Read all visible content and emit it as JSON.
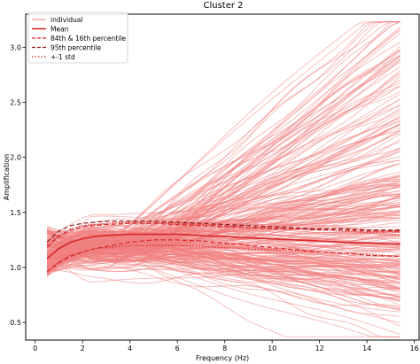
{
  "chart_data": {
    "type": "line",
    "title": "Cluster 2",
    "xlabel": "Frequency (Hz)",
    "ylabel": "Amplification",
    "xlim": [
      -0.4,
      16.2
    ],
    "ylim": [
      0.34,
      3.3
    ],
    "xticks": [
      0,
      2,
      4,
      6,
      8,
      10,
      12,
      14,
      16
    ],
    "xtick_labels": [
      "0",
      "2",
      "4",
      "6",
      "8",
      "10",
      "12",
      "14",
      "16"
    ],
    "yticks": [
      0.5,
      1.0,
      1.5,
      2.0,
      2.5,
      3.0
    ],
    "ytick_labels": [
      "0.5",
      "1.0",
      "1.5",
      "2.0",
      "2.5",
      "3.0"
    ],
    "grid": false,
    "legend_position": "top-left",
    "colors": {
      "individual": "#f08080",
      "stats": "#d62728",
      "axes": "#000000"
    },
    "legend": [
      {
        "label": "individual",
        "style": "solid-thin"
      },
      {
        "label": "Mean",
        "style": "solid"
      },
      {
        "label": "84th & 16th percentile",
        "style": "dashed"
      },
      {
        "label": "95th percentile",
        "style": "dashed-dark"
      },
      {
        "label": "+-1 std",
        "style": "dotted"
      }
    ],
    "x": [
      0.5,
      1.0,
      1.5,
      2.0,
      2.5,
      3.0,
      4.0,
      5.0,
      6.0,
      7.0,
      8.0,
      9.0,
      10.0,
      11.0,
      12.0,
      13.0,
      14.0,
      15.4
    ],
    "series": [
      {
        "name": "Mean",
        "values": [
          1.08,
          1.17,
          1.23,
          1.26,
          1.28,
          1.29,
          1.3,
          1.3,
          1.3,
          1.29,
          1.28,
          1.27,
          1.26,
          1.25,
          1.24,
          1.23,
          1.22,
          1.21
        ]
      },
      {
        "name": "84th & 16th percentile",
        "role": "upper",
        "values": [
          1.18,
          1.28,
          1.34,
          1.37,
          1.38,
          1.39,
          1.4,
          1.4,
          1.39,
          1.38,
          1.37,
          1.36,
          1.35,
          1.35,
          1.34,
          1.34,
          1.33,
          1.33
        ]
      },
      {
        "name": "84th & 16th percentile",
        "role": "lower",
        "values": [
          0.96,
          1.04,
          1.1,
          1.14,
          1.17,
          1.19,
          1.23,
          1.25,
          1.25,
          1.24,
          1.22,
          1.2,
          1.18,
          1.16,
          1.14,
          1.13,
          1.11,
          1.1
        ]
      },
      {
        "name": "95th percentile",
        "values": [
          1.23,
          1.33,
          1.38,
          1.4,
          1.41,
          1.42,
          1.42,
          1.42,
          1.41,
          1.4,
          1.39,
          1.38,
          1.37,
          1.36,
          1.35,
          1.35,
          1.34,
          1.34
        ]
      },
      {
        "name": "+-1 std",
        "role": "upper",
        "values": [
          1.2,
          1.29,
          1.35,
          1.38,
          1.39,
          1.4,
          1.41,
          1.41,
          1.4,
          1.39,
          1.38,
          1.37,
          1.36,
          1.35,
          1.34,
          1.33,
          1.32,
          1.32
        ]
      },
      {
        "name": "+-1 std",
        "role": "lower",
        "values": [
          0.96,
          1.05,
          1.11,
          1.14,
          1.17,
          1.18,
          1.2,
          1.2,
          1.2,
          1.19,
          1.18,
          1.17,
          1.16,
          1.15,
          1.14,
          1.13,
          1.12,
          1.1
        ]
      }
    ],
    "individual_summary": {
      "count": 600,
      "x_min": 0.5,
      "x_max": 15.4,
      "y_min": 0.37,
      "y_max": 3.23
    }
  }
}
